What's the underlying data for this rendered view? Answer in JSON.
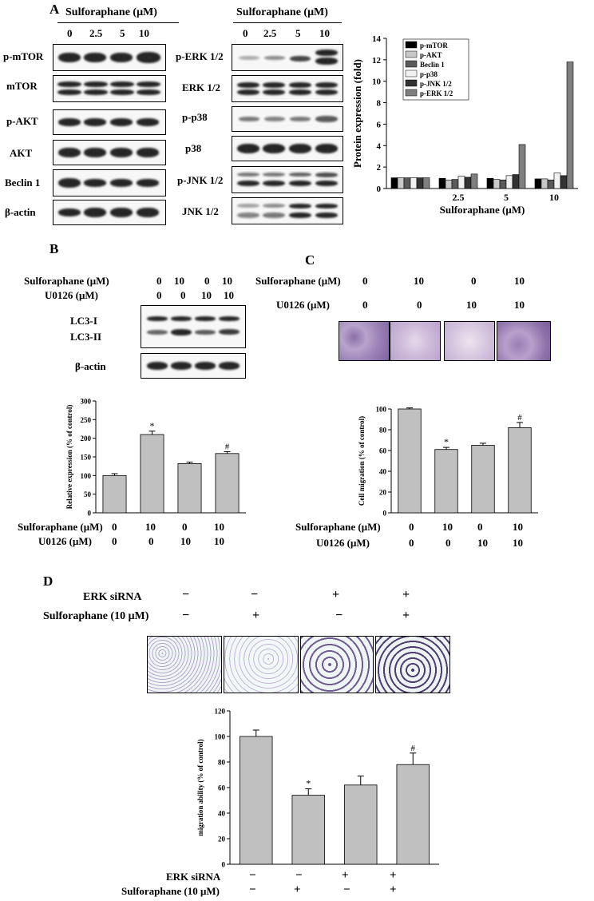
{
  "panel_a": {
    "letter": "A",
    "header_left": "Sulforaphane (μM)",
    "header_right": "Sulforaphane (μM)",
    "doses_left": [
      "0",
      "2.5",
      "5",
      "10"
    ],
    "doses_right": [
      "0",
      "2.5",
      "5",
      "10"
    ],
    "left_blots": [
      "p-mTOR",
      "mTOR",
      "p-AKT",
      "AKT",
      "Beclin 1",
      "β-actin"
    ],
    "right_blots": [
      "p-ERK 1/2",
      "ERK 1/2",
      "p-p38",
      "p38",
      "p-JNK 1/2",
      "JNK 1/2"
    ],
    "chart_colors": [
      "#000000",
      "#c8c8c8",
      "#5a5a5a",
      "#f2f2f2",
      "#333333",
      "#7f7f7f"
    ]
  },
  "panel_b": {
    "letter": "B",
    "treat_labels": [
      "Sulforaphane (μM)",
      "U0126 (μM)"
    ],
    "sulforaphane": [
      "0",
      "10",
      "0",
      "10"
    ],
    "u0126": [
      "0",
      "0",
      "10",
      "10"
    ],
    "blots": [
      "LC3-I",
      "LC3-II",
      "β-actin"
    ],
    "below_labels": [
      "Sulforaphane (μM)",
      "U0126 (μM)"
    ],
    "below_sulforaphane": [
      "0",
      "10",
      "0",
      "10"
    ],
    "below_u0126": [
      "0",
      "0",
      "10",
      "10"
    ],
    "star": "*",
    "hash": "#"
  },
  "panel_c": {
    "letter": "C",
    "treat_labels": [
      "Sulforaphane (μM)",
      "U0126 (μM)"
    ],
    "sulforaphane": [
      "0",
      "10",
      "0",
      "10"
    ],
    "u0126": [
      "0",
      "0",
      "10",
      "10"
    ],
    "below_labels": [
      "Sulforaphane (μM)",
      "U0126 (μM)"
    ],
    "below_sulforaphane": [
      "0",
      "10",
      "0",
      "10"
    ],
    "below_u0126": [
      "0",
      "0",
      "10",
      "10"
    ],
    "star": "*",
    "hash": "#"
  },
  "panel_d": {
    "letter": "D",
    "treat_labels": [
      "ERK siRNA",
      "Sulforaphane (10 μM)"
    ],
    "erk": [
      "−",
      "−",
      "+",
      "+"
    ],
    "sfn": [
      "−",
      "+",
      "−",
      "+"
    ],
    "below_labels": [
      "ERK siRNA",
      "Sulforaphane (10 μM)"
    ],
    "below_erk": [
      "−",
      "−",
      "+",
      "+"
    ],
    "below_sfn": [
      "−",
      "+",
      "−",
      "+"
    ],
    "star": "*",
    "hash": "#"
  },
  "chart_data": [
    {
      "type": "bar",
      "xlabel": "Sulforaphane (μM)",
      "ylabel": "Protein expression (fold)",
      "categories": [
        "",
        "2.5",
        "5",
        "10"
      ],
      "ylim": [
        0,
        14
      ],
      "yticks": [
        "0",
        "2",
        "4",
        "6",
        "8",
        "10",
        "12",
        "14"
      ],
      "legend_position": "top-left",
      "series": [
        {
          "name": "p-mTOR",
          "values": [
            1.0,
            0.95,
            0.95,
            0.9
          ]
        },
        {
          "name": "p-AKT",
          "values": [
            1.0,
            0.8,
            0.85,
            0.9
          ]
        },
        {
          "name": "Beclin 1",
          "values": [
            1.0,
            0.85,
            0.8,
            0.8
          ]
        },
        {
          "name": "p-p38",
          "values": [
            1.0,
            1.15,
            1.2,
            1.45
          ]
        },
        {
          "name": "p-JNK 1/2",
          "values": [
            1.0,
            1.05,
            1.3,
            1.2
          ]
        },
        {
          "name": "p-ERK 1/2",
          "values": [
            1.0,
            1.35,
            4.1,
            11.8
          ]
        }
      ]
    },
    {
      "type": "bar",
      "ylabel": "Relative expression (% of control)",
      "ylim": [
        0,
        300
      ],
      "yticks": [
        "0",
        "50",
        "100",
        "150",
        "200",
        "250",
        "300"
      ],
      "values": [
        100,
        210,
        132,
        159
      ],
      "errors": [
        5,
        9,
        4,
        5
      ]
    },
    {
      "type": "bar",
      "ylabel": "Cell migration (% of control)",
      "ylim": [
        0,
        100
      ],
      "yticks": [
        "0",
        "20",
        "40",
        "60",
        "80",
        "100"
      ],
      "values": [
        100,
        61,
        65,
        82
      ],
      "errors": [
        1,
        2,
        2,
        5
      ]
    },
    {
      "type": "bar",
      "ylabel": "migration ability (% of control)",
      "ylim": [
        0,
        120
      ],
      "yticks": [
        "0",
        "20",
        "40",
        "60",
        "80",
        "100",
        "120"
      ],
      "values": [
        100,
        54,
        62,
        78
      ],
      "errors": [
        5,
        5,
        7,
        9
      ]
    }
  ]
}
